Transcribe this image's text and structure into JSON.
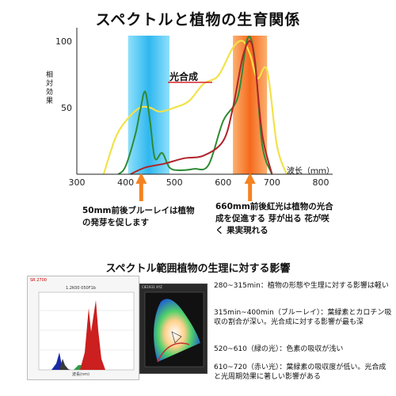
{
  "title": "スペクトルと植物の生育関係",
  "colors": {
    "blue_band": "#3bbdf0",
    "red_band": "#f7701e",
    "photosynthesis_line": "#f2e24a",
    "chlorophyll_green": "#2f8a34",
    "chlorophyll_red": "#b0242a",
    "arrow": "#f58220"
  },
  "chart_data": {
    "type": "line",
    "title": "スペクトルと植物の生育関係",
    "xlabel": "波长（ｍｍ）",
    "ylabel": "相対効果",
    "xlim": [
      300,
      800
    ],
    "ylim": [
      0,
      110
    ],
    "xticks": [
      "300",
      "400",
      "500",
      "600",
      "700",
      "800"
    ],
    "yticks": [
      "50",
      "100"
    ],
    "bands": [
      {
        "name": "blue",
        "from": 405,
        "to": 490
      },
      {
        "name": "red",
        "from": 620,
        "to": 690
      }
    ],
    "series": [
      {
        "name": "光合成",
        "x": [
          355,
          380,
          405,
          430,
          450,
          470,
          500,
          530,
          560,
          590,
          620,
          640,
          655,
          670,
          690,
          710,
          730
        ],
        "y": [
          0,
          28,
          42,
          50,
          50,
          47,
          50,
          55,
          68,
          74,
          95,
          100,
          90,
          72,
          78,
          22,
          0
        ]
      },
      {
        "name": "",
        "x": [
          385,
          400,
          420,
          430,
          440,
          450,
          460,
          475,
          490,
          510,
          540,
          570,
          600,
          630,
          650,
          665,
          680,
          700
        ],
        "y": [
          0,
          6,
          30,
          48,
          62,
          40,
          12,
          16,
          5,
          3,
          4,
          7,
          40,
          58,
          102,
          86,
          22,
          0
        ]
      },
      {
        "name": "",
        "x": [
          410,
          440,
          480,
          520,
          560,
          600,
          620,
          640,
          655,
          665,
          680,
          700
        ],
        "y": [
          0,
          5,
          8,
          12,
          14,
          25,
          50,
          88,
          100,
          84,
          30,
          0
        ]
      }
    ]
  },
  "labels": {
    "photosynthesis": "光合成",
    "y_axis": "相対効果",
    "x_unit": "波长（ｍｍ）"
  },
  "notes": {
    "blue": "50mm前後ブルーレイは植物の発芽を促します",
    "red": "660mm前後紅光は植物の光合成を促進する 芽が出る 花が咲く 果実現れる"
  },
  "subtitle": "スペクトル範囲植物の生理に対する影響",
  "image_texts": {
    "spectrum_header": "SR 2700",
    "spectrum_caption": "1.2K00 050F1b",
    "spectrum_xcap": "波長(nm)",
    "cie_header": "CIE1931 XYZ"
  },
  "descriptions": [
    "280~315min：植物の形態や生理に対する影響は軽い",
    "315min~400min（ブルーレイ）：葉緑素とカロチン吸収の割合が深い。光合成に対する影響が最も深",
    "520~610（緑の光）：色素の吸収が浅い",
    "610~720（赤い光）：葉緑素の吸収度が低い。光合成と光周期効果に著しい影響がある"
  ]
}
